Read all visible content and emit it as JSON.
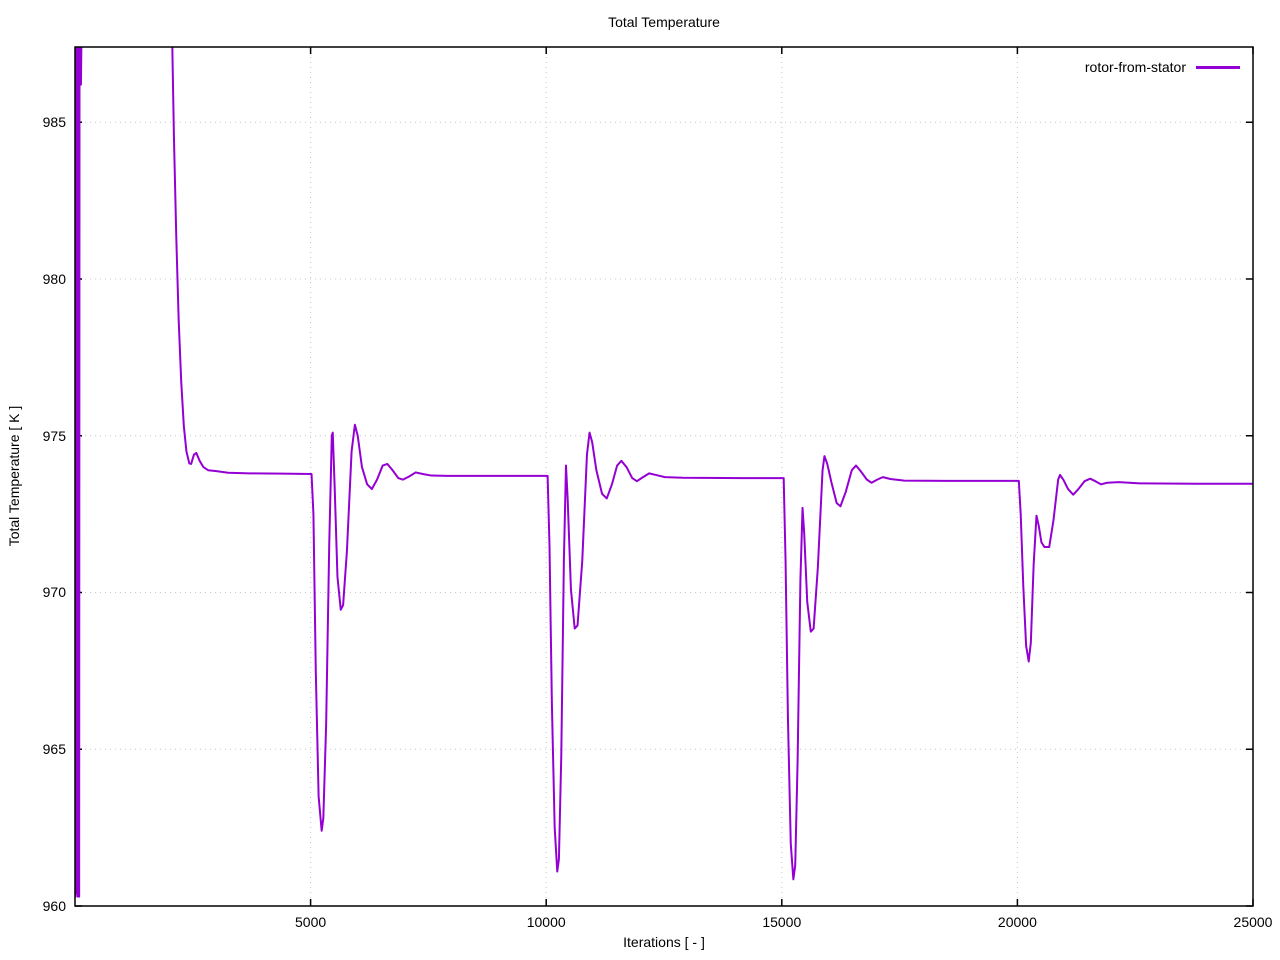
{
  "chart_data": {
    "type": "line",
    "title": "Total Temperature",
    "xlabel": "Iterations [ - ]",
    "ylabel": "Total Temperature [ K ]",
    "xlim": [
      0,
      25000
    ],
    "ylim": [
      960,
      987.4
    ],
    "xticks": [
      5000,
      10000,
      15000,
      20000,
      25000
    ],
    "yticks": [
      960,
      965,
      970,
      975,
      980,
      985
    ],
    "grid": true,
    "legend_position": "top-right-inside",
    "colors": {
      "line": "#9400d3",
      "grid": "#c8c8c8",
      "border": "#000000",
      "text": "#000000"
    },
    "series": [
      {
        "name": "rotor-from-stator",
        "color": "#9400d3",
        "points": [
          [
            2,
            987.5
          ],
          [
            10,
            960.3
          ],
          [
            18,
            987.5
          ],
          [
            26,
            960.4
          ],
          [
            34,
            987.5
          ],
          [
            42,
            960.6
          ],
          [
            50,
            987.5
          ],
          [
            58,
            960.3
          ],
          [
            66,
            987.5
          ],
          [
            74,
            960.5
          ],
          [
            82,
            987.5
          ],
          [
            88,
            960.3
          ],
          [
            96,
            987.5
          ],
          [
            106,
            986.3
          ],
          [
            116,
            987.5
          ],
          [
            126,
            986.2
          ],
          [
            136,
            987.6
          ],
          [
            160,
            992
          ],
          [
            2030,
            991
          ],
          [
            2070,
            987
          ],
          [
            2100,
            984.5
          ],
          [
            2150,
            981.3
          ],
          [
            2200,
            978.7
          ],
          [
            2255,
            976.7
          ],
          [
            2310,
            975.3
          ],
          [
            2365,
            974.5
          ],
          [
            2425,
            974.12
          ],
          [
            2465,
            974.1
          ],
          [
            2525,
            974.4
          ],
          [
            2575,
            974.45
          ],
          [
            2645,
            974.2
          ],
          [
            2725,
            974.0
          ],
          [
            2825,
            973.9
          ],
          [
            3000,
            973.87
          ],
          [
            3250,
            973.82
          ],
          [
            3700,
            973.8
          ],
          [
            4400,
            973.79
          ],
          [
            5020,
            973.78
          ],
          [
            5060,
            972.5
          ],
          [
            5110,
            967.5
          ],
          [
            5170,
            963.5
          ],
          [
            5235,
            962.4
          ],
          [
            5270,
            962.8
          ],
          [
            5330,
            965.8
          ],
          [
            5395,
            971.5
          ],
          [
            5450,
            975.0
          ],
          [
            5470,
            975.1
          ],
          [
            5510,
            973.4
          ],
          [
            5570,
            970.5
          ],
          [
            5640,
            969.45
          ],
          [
            5690,
            969.6
          ],
          [
            5770,
            971.3
          ],
          [
            5870,
            974.5
          ],
          [
            5940,
            975.35
          ],
          [
            6000,
            975.0
          ],
          [
            6090,
            974.0
          ],
          [
            6200,
            973.45
          ],
          [
            6300,
            973.3
          ],
          [
            6410,
            973.6
          ],
          [
            6530,
            974.05
          ],
          [
            6630,
            974.1
          ],
          [
            6740,
            973.9
          ],
          [
            6860,
            973.65
          ],
          [
            6960,
            973.6
          ],
          [
            7090,
            973.7
          ],
          [
            7230,
            973.83
          ],
          [
            7380,
            973.78
          ],
          [
            7560,
            973.73
          ],
          [
            7900,
            973.72
          ],
          [
            9500,
            973.72
          ],
          [
            10030,
            973.72
          ],
          [
            10070,
            971.5
          ],
          [
            10120,
            966.5
          ],
          [
            10180,
            962.5
          ],
          [
            10235,
            961.1
          ],
          [
            10270,
            961.5
          ],
          [
            10320,
            964.8
          ],
          [
            10375,
            971.0
          ],
          [
            10420,
            974.05
          ],
          [
            10455,
            973.0
          ],
          [
            10525,
            970.1
          ],
          [
            10605,
            968.85
          ],
          [
            10665,
            968.95
          ],
          [
            10765,
            971.0
          ],
          [
            10865,
            974.4
          ],
          [
            10920,
            975.1
          ],
          [
            10975,
            974.8
          ],
          [
            11065,
            973.9
          ],
          [
            11185,
            973.15
          ],
          [
            11285,
            973.0
          ],
          [
            11395,
            973.45
          ],
          [
            11505,
            974.05
          ],
          [
            11595,
            974.2
          ],
          [
            11705,
            974.0
          ],
          [
            11825,
            973.65
          ],
          [
            11925,
            973.55
          ],
          [
            12055,
            973.68
          ],
          [
            12185,
            973.8
          ],
          [
            12325,
            973.75
          ],
          [
            12520,
            973.68
          ],
          [
            12900,
            973.66
          ],
          [
            14200,
            973.65
          ],
          [
            15040,
            973.65
          ],
          [
            15080,
            971.0
          ],
          [
            15130,
            966.0
          ],
          [
            15190,
            962.0
          ],
          [
            15245,
            960.85
          ],
          [
            15285,
            961.3
          ],
          [
            15335,
            964.6
          ],
          [
            15395,
            970.4
          ],
          [
            15440,
            972.7
          ],
          [
            15475,
            971.9
          ],
          [
            15540,
            969.7
          ],
          [
            15615,
            968.75
          ],
          [
            15675,
            968.85
          ],
          [
            15765,
            970.8
          ],
          [
            15865,
            973.9
          ],
          [
            15905,
            974.35
          ],
          [
            15965,
            974.1
          ],
          [
            16055,
            973.5
          ],
          [
            16165,
            972.85
          ],
          [
            16245,
            972.75
          ],
          [
            16355,
            973.2
          ],
          [
            16485,
            973.9
          ],
          [
            16575,
            974.05
          ],
          [
            16685,
            973.85
          ],
          [
            16805,
            973.6
          ],
          [
            16905,
            973.5
          ],
          [
            17025,
            973.6
          ],
          [
            17145,
            973.68
          ],
          [
            17305,
            973.62
          ],
          [
            17600,
            973.57
          ],
          [
            18500,
            973.56
          ],
          [
            20030,
            973.56
          ],
          [
            20070,
            972.5
          ],
          [
            20125,
            970.2
          ],
          [
            20185,
            968.3
          ],
          [
            20240,
            967.8
          ],
          [
            20285,
            968.4
          ],
          [
            20345,
            970.9
          ],
          [
            20405,
            972.45
          ],
          [
            20450,
            972.15
          ],
          [
            20510,
            971.6
          ],
          [
            20575,
            971.45
          ],
          [
            20675,
            971.45
          ],
          [
            20765,
            972.3
          ],
          [
            20865,
            973.6
          ],
          [
            20905,
            973.75
          ],
          [
            20975,
            973.6
          ],
          [
            21075,
            973.3
          ],
          [
            21185,
            973.12
          ],
          [
            21295,
            973.3
          ],
          [
            21425,
            973.55
          ],
          [
            21545,
            973.63
          ],
          [
            21655,
            973.55
          ],
          [
            21775,
            973.45
          ],
          [
            21905,
            973.5
          ],
          [
            22150,
            973.52
          ],
          [
            22600,
            973.48
          ],
          [
            23800,
            973.47
          ],
          [
            25000,
            973.47
          ]
        ]
      }
    ]
  }
}
